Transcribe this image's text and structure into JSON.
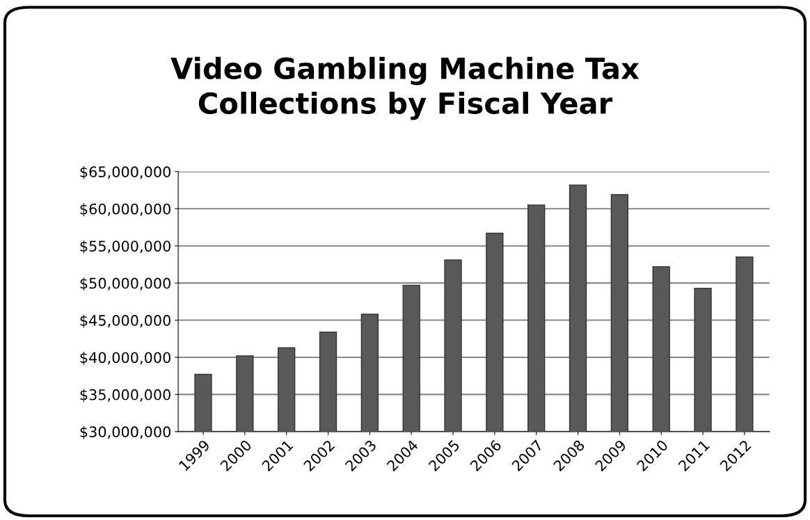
{
  "chart_data": {
    "type": "bar",
    "title": "Video Gambling Machine Tax\nCollections by Fiscal Year",
    "categories": [
      "1999",
      "2000",
      "2001",
      "2002",
      "2003",
      "2004",
      "2005",
      "2006",
      "2007",
      "2008",
      "2009",
      "2010",
      "2011",
      "2012"
    ],
    "values": [
      37700000,
      40200000,
      41300000,
      43400000,
      45800000,
      49700000,
      53100000,
      56700000,
      60500000,
      63200000,
      61900000,
      52200000,
      49300000,
      53500000
    ],
    "color": "#595959",
    "ylim": [
      30000000,
      65000000
    ],
    "yticks": [
      {
        "value": 30000000,
        "label": "$30,000,000"
      },
      {
        "value": 35000000,
        "label": "$35,000,000"
      },
      {
        "value": 40000000,
        "label": "$40,000,000"
      },
      {
        "value": 45000000,
        "label": "$45,000,000"
      },
      {
        "value": 50000000,
        "label": "$50,000,000"
      },
      {
        "value": 55000000,
        "label": "$55,000,000"
      },
      {
        "value": 60000000,
        "label": "$60,000,000"
      },
      {
        "value": 65000000,
        "label": "$65,000,000"
      }
    ],
    "grid": "y",
    "legend": false
  }
}
